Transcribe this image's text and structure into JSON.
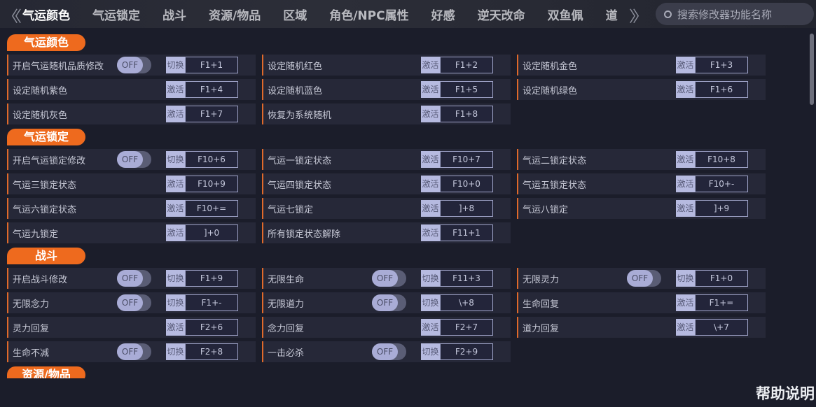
{
  "tabs": [
    "气运颜色",
    "气运锁定",
    "战斗",
    "资源/物品",
    "区域",
    "角色/NPC属性",
    "好感",
    "逆天改命",
    "双鱼佩",
    "道"
  ],
  "active_tab": 0,
  "search": {
    "placeholder": "搜索修改器功能名称"
  },
  "help": "帮助说明",
  "toggle_off": "OFF",
  "accent": "#ee6a1e",
  "sections": [
    {
      "title": "气运颜色",
      "items": [
        {
          "label": "开启气运随机品质修改",
          "toggle": true,
          "key_type": "切换",
          "key": "F1+1"
        },
        {
          "label": "设定随机红色",
          "key_type": "激活",
          "key": "F1+2"
        },
        {
          "label": "设定随机金色",
          "key_type": "激活",
          "key": "F1+3"
        },
        {
          "label": "设定随机紫色",
          "key_type": "激活",
          "key": "F1+4"
        },
        {
          "label": "设定随机蓝色",
          "key_type": "激活",
          "key": "F1+5"
        },
        {
          "label": "设定随机绿色",
          "key_type": "激活",
          "key": "F1+6"
        },
        {
          "label": "设定随机灰色",
          "key_type": "激活",
          "key": "F1+7"
        },
        {
          "label": "恢复为系统随机",
          "key_type": "激活",
          "key": "F1+8"
        }
      ]
    },
    {
      "title": "气运锁定",
      "items": [
        {
          "label": "开启气运锁定修改",
          "toggle": true,
          "key_type": "切换",
          "key": "F10+6"
        },
        {
          "label": "气运一锁定状态",
          "key_type": "激活",
          "key": "F10+7"
        },
        {
          "label": "气运二锁定状态",
          "key_type": "激活",
          "key": "F10+8"
        },
        {
          "label": "气运三锁定状态",
          "key_type": "激活",
          "key": "F10+9"
        },
        {
          "label": "气运四锁定状态",
          "key_type": "激活",
          "key": "F10+0"
        },
        {
          "label": "气运五锁定状态",
          "key_type": "激活",
          "key": "F10+-"
        },
        {
          "label": "气运六锁定状态",
          "key_type": "激活",
          "key": "F10+="
        },
        {
          "label": "气运七锁定",
          "key_type": "激活",
          "key": "]+8"
        },
        {
          "label": "气运八锁定",
          "key_type": "激活",
          "key": "]+9"
        },
        {
          "label": "气运九锁定",
          "key_type": "激活",
          "key": "]+0"
        },
        {
          "label": "所有锁定状态解除",
          "key_type": "激活",
          "key": "F11+1"
        }
      ]
    },
    {
      "title": "战斗",
      "items": [
        {
          "label": "开启战斗修改",
          "toggle": true,
          "key_type": "切换",
          "key": "F1+9"
        },
        {
          "label": "无限生命",
          "toggle": true,
          "key_type": "切换",
          "key": "F11+3"
        },
        {
          "label": "无限灵力",
          "toggle": true,
          "key_type": "切换",
          "key": "F1+0"
        },
        {
          "label": "无限念力",
          "toggle": true,
          "key_type": "切换",
          "key": "F1+-"
        },
        {
          "label": "无限道力",
          "toggle": true,
          "key_type": "切换",
          "key": "\\+8"
        },
        {
          "label": "生命回复",
          "key_type": "激活",
          "key": "F1+="
        },
        {
          "label": "灵力回复",
          "key_type": "激活",
          "key": "F2+6"
        },
        {
          "label": "念力回复",
          "key_type": "激活",
          "key": "F2+7"
        },
        {
          "label": "道力回复",
          "key_type": "激活",
          "key": "\\+7"
        },
        {
          "label": "生命不减",
          "toggle": true,
          "key_type": "切换",
          "key": "F2+8"
        },
        {
          "label": "一击必杀",
          "toggle": true,
          "key_type": "切换",
          "key": "F2+9"
        }
      ]
    },
    {
      "title": "资源/物品",
      "items": []
    }
  ]
}
